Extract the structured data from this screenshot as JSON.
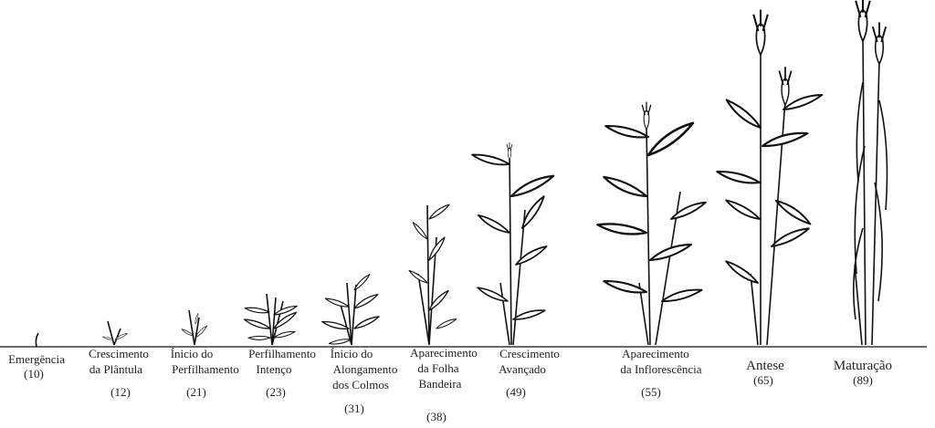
{
  "stages": [
    {
      "lines": [
        "Emergência"
      ],
      "code": "(10)"
    },
    {
      "lines": [
        "Crescimento",
        "da Plântula"
      ],
      "code": "(12)"
    },
    {
      "lines": [
        "Ínicio do",
        "Perfilhamento"
      ],
      "code": "(21)"
    },
    {
      "lines": [
        "Perfilhamento",
        "Intenço"
      ],
      "code": "(23)"
    },
    {
      "lines": [
        "Ínicio do",
        "Alongamento",
        "dos Colmos"
      ],
      "code": "(31)"
    },
    {
      "lines": [
        "Aparecimento",
        "da Folha",
        "Bandeira"
      ],
      "code": "(38)"
    },
    {
      "lines": [
        "Crescimento",
        "Avançado"
      ],
      "code": "(49)"
    },
    {
      "lines": [
        "Aparecimento",
        "da Inflorescência"
      ],
      "code": "(55)"
    },
    {
      "lines": [
        "Antese"
      ],
      "code": "(65)"
    },
    {
      "lines": [
        "Maturação"
      ],
      "code": "(89)"
    }
  ]
}
